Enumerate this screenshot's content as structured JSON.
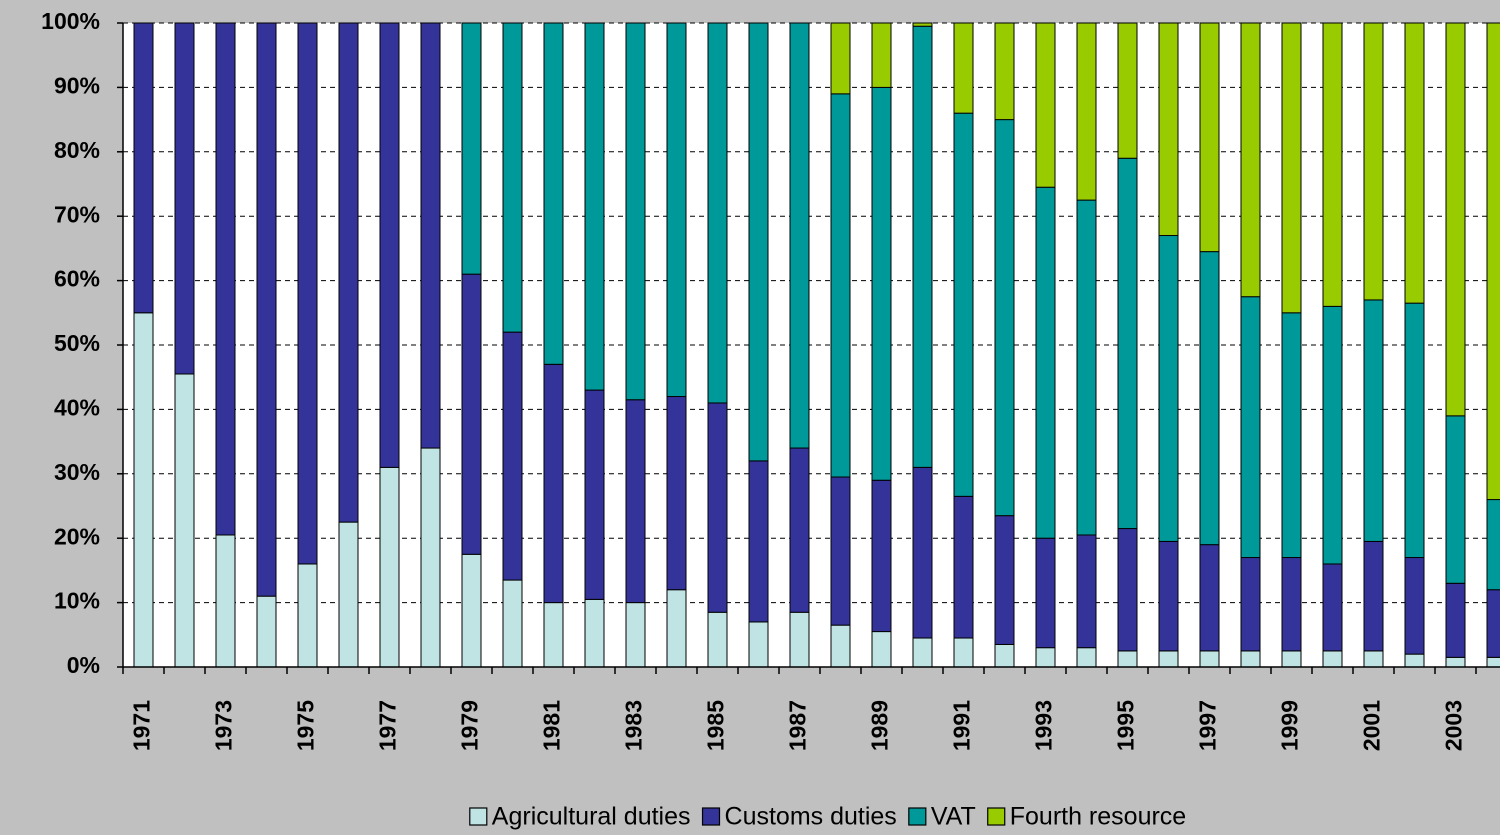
{
  "chart_data": {
    "type": "stacked_bar",
    "categories": [
      "1971",
      null,
      "1973",
      null,
      "1975",
      null,
      "1977",
      null,
      "1979",
      null,
      "1981",
      null,
      "1983",
      null,
      "1985",
      null,
      "1987",
      null,
      "1989",
      null,
      "1991",
      null,
      "1993",
      null,
      "1995",
      null,
      "1997",
      null,
      "1999",
      null,
      "2001",
      null,
      "2003",
      null
    ],
    "series": [
      {
        "name": "Agricultural duties",
        "color": "#c0e4e4",
        "values": [
          55,
          45.5,
          20.5,
          11,
          16,
          22.5,
          31,
          34,
          17.5,
          13.5,
          10,
          10.5,
          10,
          12,
          8.5,
          7,
          8.5,
          6.5,
          5.5,
          4.5,
          4.5,
          3.5,
          3,
          3,
          2.5,
          2.5,
          2.5,
          2.5,
          2.5,
          2.5,
          2.5,
          2,
          1.5,
          1.5
        ]
      },
      {
        "name": "Customs duties",
        "color": "#333399",
        "values": [
          45,
          54.5,
          79.5,
          89,
          84,
          77.5,
          69,
          66,
          43.5,
          38.5,
          37,
          32.5,
          31.5,
          30,
          32.5,
          25,
          25.5,
          23,
          23.5,
          26.5,
          22,
          20,
          17,
          17.5,
          19,
          17,
          16.5,
          14.5,
          14.5,
          13.5,
          17,
          15,
          11.5,
          10.5
        ]
      },
      {
        "name": "VAT",
        "color": "#009999",
        "values": [
          0,
          0,
          0,
          0,
          0,
          0,
          0,
          0,
          39,
          48,
          53,
          57,
          58.5,
          58,
          59,
          68,
          66,
          59.5,
          61,
          68.5,
          59.5,
          61.5,
          54.5,
          52,
          57.5,
          47.5,
          45.5,
          40.5,
          38,
          40,
          37.5,
          39.5,
          26,
          14
        ]
      },
      {
        "name": "Fourth resource",
        "color": "#99cc00",
        "values": [
          0,
          0,
          0,
          0,
          0,
          0,
          0,
          0,
          0,
          0,
          0,
          0,
          0,
          0,
          0,
          0,
          0,
          11,
          10,
          0.5,
          14,
          15,
          25.5,
          27.5,
          21,
          33,
          35.5,
          42.5,
          45,
          44,
          43,
          43.5,
          61,
          74
        ]
      }
    ],
    "ylim": [
      0,
      100
    ],
    "yticks": [
      {
        "value": 0,
        "label": "0%"
      },
      {
        "value": 10,
        "label": "10%"
      },
      {
        "value": 20,
        "label": "20%"
      },
      {
        "value": 30,
        "label": "30%"
      },
      {
        "value": 40,
        "label": "40%"
      },
      {
        "value": 50,
        "label": "50%"
      },
      {
        "value": 60,
        "label": "60%"
      },
      {
        "value": 70,
        "label": "70%"
      },
      {
        "value": 80,
        "label": "80%"
      },
      {
        "value": 90,
        "label": "90%"
      },
      {
        "value": 100,
        "label": "100%"
      }
    ],
    "grid": true,
    "legend": "bottom"
  }
}
